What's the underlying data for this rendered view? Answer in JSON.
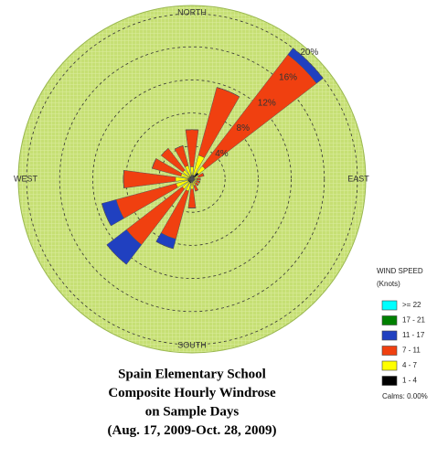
{
  "chart_data": {
    "type": "windrose",
    "title": [
      "Spain Elementary School",
      "Composite Hourly Windrose",
      "on Sample Days",
      "(Aug. 17, 2009-Oct. 28, 2009)"
    ],
    "legend_title": [
      "WIND SPEED",
      "(Knots)"
    ],
    "annotations": [
      "Calms: 0.00%"
    ],
    "directions": [
      "NORTH",
      null,
      null,
      null,
      "EAST",
      null,
      null,
      null,
      "SOUTH",
      null,
      null,
      null,
      "WEST",
      null,
      null,
      null
    ],
    "rlim": [
      0,
      21
    ],
    "rticks": [
      {
        "value": 4,
        "label": "4%"
      },
      {
        "value": 8,
        "label": "8%"
      },
      {
        "value": 12,
        "label": "12%"
      },
      {
        "value": 16,
        "label": "16%"
      },
      {
        "value": 20,
        "label": "20%"
      }
    ],
    "series": [
      {
        "name": ">= 22",
        "color": "#00ffff",
        "values": [
          0,
          0,
          0,
          0,
          0,
          0,
          0,
          0,
          0,
          0,
          0,
          0,
          0,
          0,
          0,
          0
        ]
      },
      {
        "name": "17 - 21",
        "color": "#008000",
        "values": [
          0,
          0,
          0,
          0,
          0,
          0,
          0,
          0,
          0,
          0,
          0,
          0,
          0,
          0,
          0,
          0
        ]
      },
      {
        "name": "11 - 17",
        "color": "#2040c0",
        "values": [
          0,
          0,
          1,
          0,
          0,
          0,
          0,
          0,
          0,
          1.2,
          3,
          1.8,
          0,
          0,
          0,
          0
        ]
      },
      {
        "name": "7 - 11",
        "color": "#f04010",
        "values": [
          4.5,
          8.5,
          17,
          0.7,
          0.4,
          0.4,
          0.4,
          0.7,
          2.3,
          6,
          8.5,
          7.5,
          6.3,
          3.6,
          3.3,
          2.5
        ]
      },
      {
        "name": "4 - 7",
        "color": "#ffff00",
        "values": [
          1,
          2.5,
          1,
          0.5,
          0.3,
          0.3,
          0.3,
          0.5,
          0.8,
          1,
          1,
          1.5,
          1.5,
          1,
          1,
          1.3
        ]
      },
      {
        "name": "1 - 4",
        "color": "#000000",
        "values": [
          0.5,
          0.5,
          1,
          0.3,
          0.3,
          0.3,
          0.3,
          0.3,
          0.4,
          0.5,
          0.5,
          0.5,
          0.5,
          0.4,
          0.4,
          0.4
        ]
      }
    ]
  }
}
